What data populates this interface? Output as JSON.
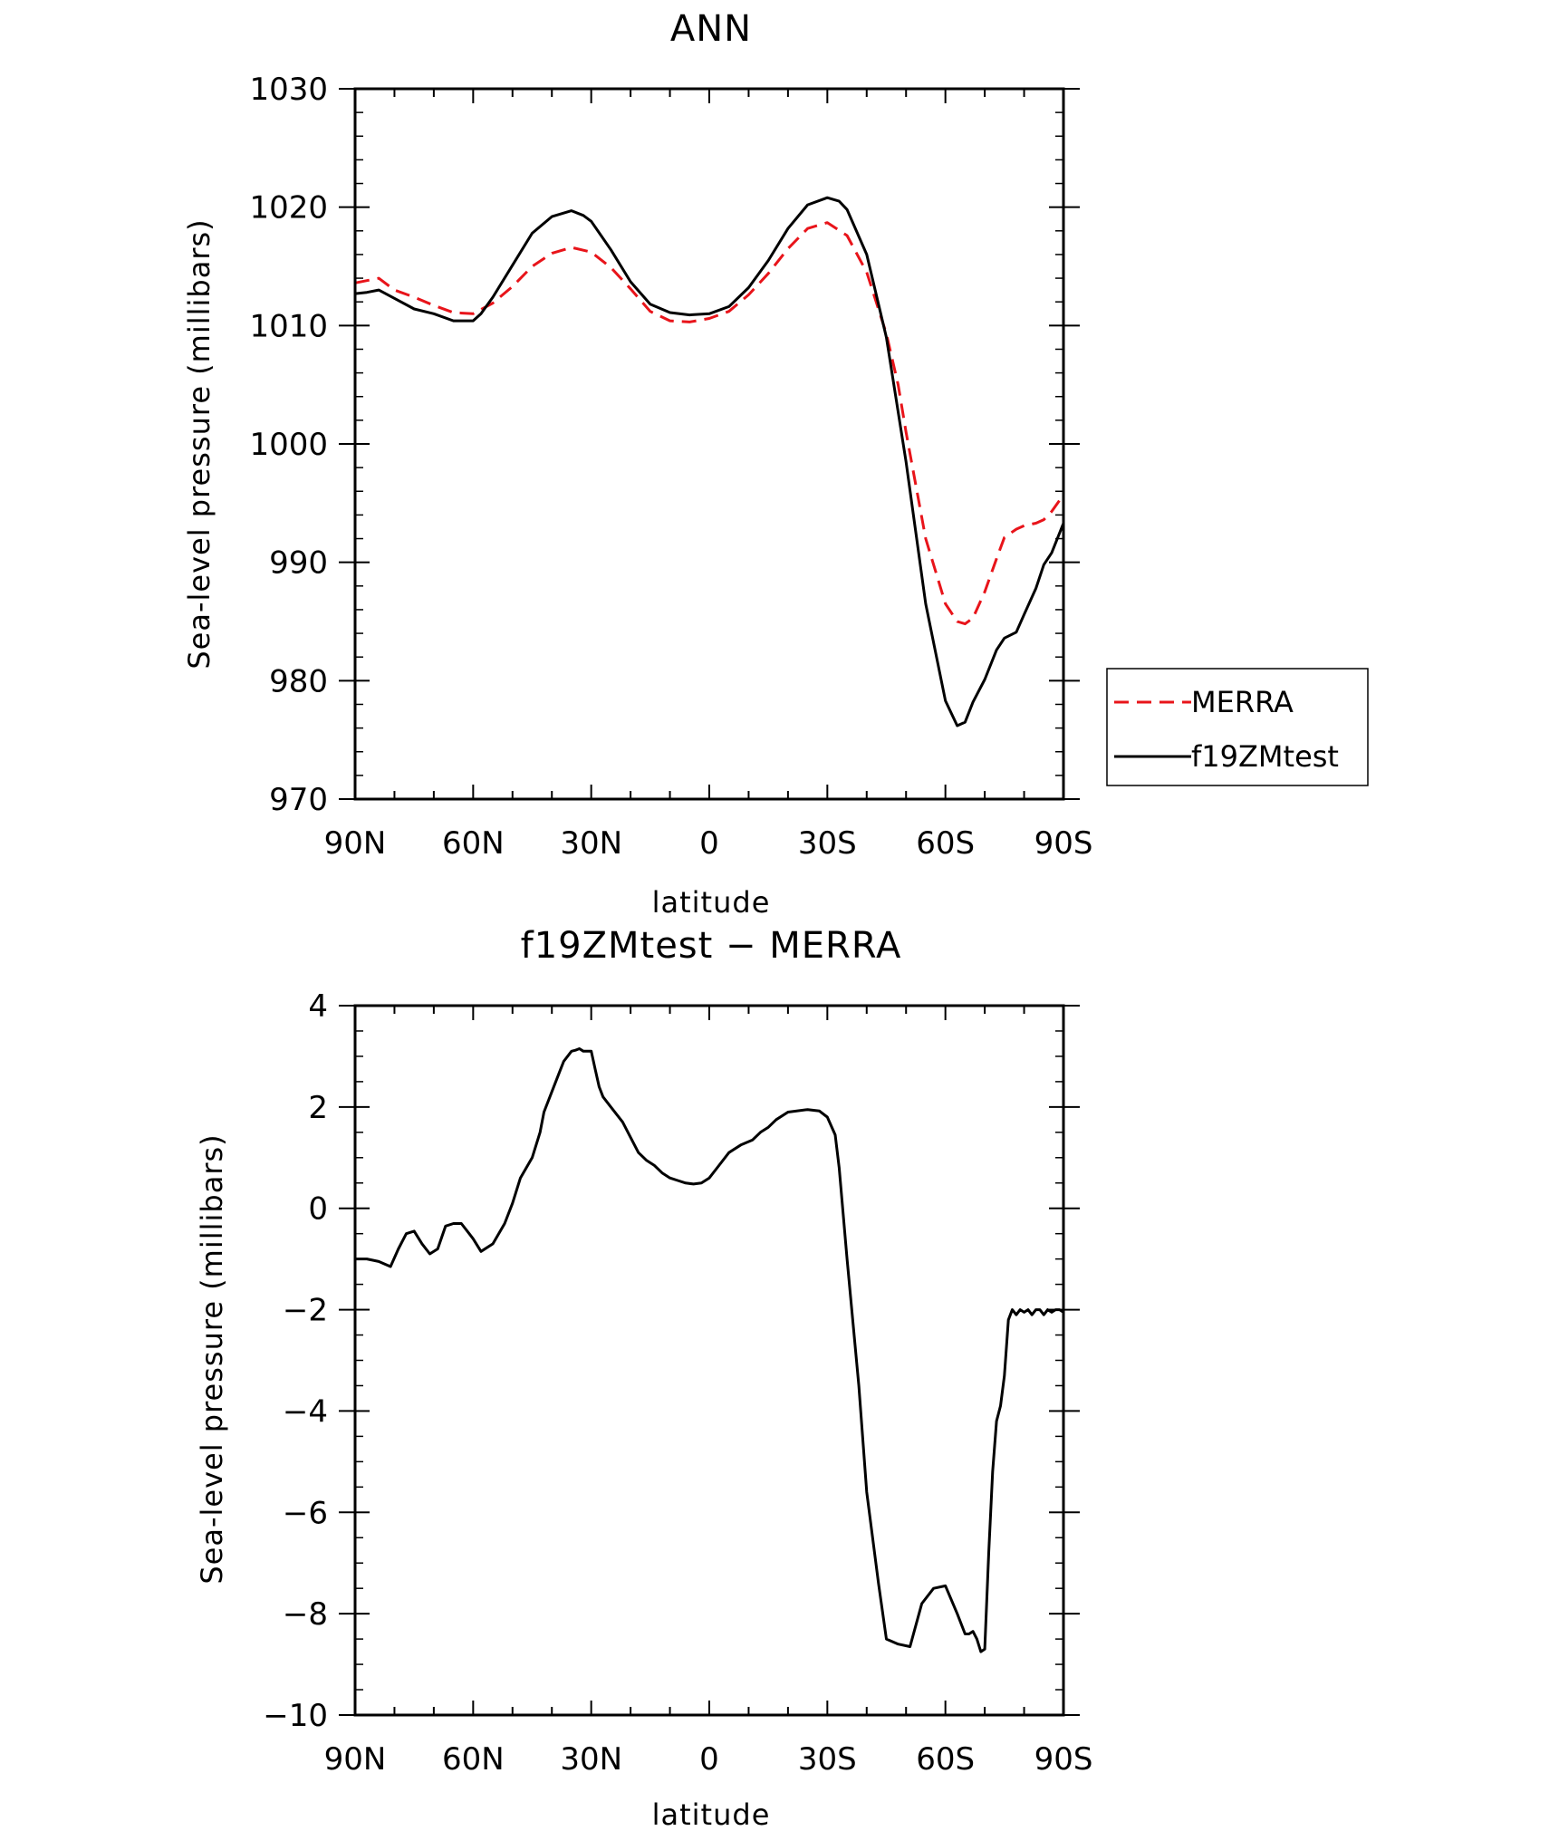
{
  "colors": {
    "merra": "#e8141a",
    "test": "#000000",
    "axes": "#000000"
  },
  "chart_data": [
    {
      "type": "line",
      "title": "ANN",
      "xlabel": "latitude",
      "ylabel": "Sea-level pressure (millibars)",
      "xlim": [
        90,
        -90
      ],
      "ylim": [
        970,
        1030
      ],
      "xticks": [
        90,
        60,
        30,
        0,
        -30,
        -60,
        -90
      ],
      "xtick_labels": [
        "90N",
        "60N",
        "30N",
        "0",
        "30S",
        "60S",
        "90S"
      ],
      "yticks": [
        970,
        980,
        990,
        1000,
        1010,
        1020,
        1030
      ],
      "ytick_labels": [
        "970",
        "980",
        "990",
        "1000",
        "1010",
        "1020",
        "1030"
      ],
      "grid": false,
      "legend_position": "right",
      "series": [
        {
          "name": "MERRA",
          "style": "dashed",
          "color": "#e8141a",
          "x": [
            90,
            87,
            84,
            80,
            75,
            70,
            65,
            60,
            55,
            50,
            45,
            40,
            35,
            30,
            25,
            20,
            15,
            10,
            5,
            0,
            -5,
            -10,
            -15,
            -20,
            -25,
            -30,
            -35,
            -40,
            -45,
            -48,
            -50,
            -55,
            -60,
            -63,
            -65,
            -67,
            -70,
            -73,
            -75,
            -78,
            -80,
            -83,
            -85,
            -87,
            -90
          ],
          "y": [
            1013.6,
            1013.8,
            1014.0,
            1013.0,
            1012.4,
            1011.7,
            1011.1,
            1011.0,
            1011.9,
            1013.3,
            1015.0,
            1016.1,
            1016.6,
            1016.2,
            1014.9,
            1013.1,
            1011.2,
            1010.4,
            1010.3,
            1010.6,
            1011.2,
            1012.6,
            1014.4,
            1016.5,
            1018.2,
            1018.7,
            1017.6,
            1014.5,
            1009.3,
            1005.0,
            1001.0,
            992.0,
            986.5,
            985.0,
            984.8,
            985.3,
            987.5,
            990.3,
            992.1,
            992.8,
            993.1,
            993.3,
            993.6,
            994.3,
            995.7
          ]
        },
        {
          "name": "f19ZMtest",
          "style": "solid",
          "color": "#000000",
          "x": [
            90,
            87,
            84,
            80,
            75,
            70,
            65,
            60,
            58,
            55,
            50,
            45,
            40,
            35,
            32,
            30,
            25,
            20,
            15,
            10,
            5,
            0,
            -5,
            -10,
            -15,
            -20,
            -25,
            -30,
            -33,
            -35,
            -40,
            -45,
            -50,
            -55,
            -60,
            -63,
            -65,
            -67,
            -70,
            -73,
            -75,
            -78,
            -80,
            -83,
            -85,
            -87,
            -90
          ],
          "y": [
            1012.7,
            1012.8,
            1013.0,
            1012.3,
            1011.4,
            1011.0,
            1010.4,
            1010.4,
            1011.0,
            1012.4,
            1015.1,
            1017.8,
            1019.2,
            1019.7,
            1019.3,
            1018.8,
            1016.4,
            1013.7,
            1011.8,
            1011.1,
            1010.9,
            1011.0,
            1011.6,
            1013.2,
            1015.5,
            1018.2,
            1020.2,
            1020.8,
            1020.5,
            1019.8,
            1016.0,
            1009.0,
            998.5,
            986.5,
            978.3,
            976.2,
            976.5,
            978.2,
            980.1,
            982.6,
            983.6,
            984.1,
            985.6,
            987.8,
            989.8,
            990.8,
            993.3
          ]
        }
      ]
    },
    {
      "type": "line",
      "title": "f19ZMtest − MERRA",
      "xlabel": "latitude",
      "ylabel": "Sea-level pressure (millibars)",
      "xlim": [
        90,
        -90
      ],
      "ylim": [
        -10,
        4
      ],
      "xticks": [
        90,
        60,
        30,
        0,
        -30,
        -60,
        -90
      ],
      "xtick_labels": [
        "90N",
        "60N",
        "30N",
        "0",
        "30S",
        "60S",
        "90S"
      ],
      "yticks": [
        -10,
        -8,
        -6,
        -4,
        -2,
        0,
        2,
        4
      ],
      "ytick_labels": [
        "−10",
        "−8",
        "−6",
        "−4",
        "−2",
        "0",
        "2",
        "4"
      ],
      "grid": false,
      "series": [
        {
          "style": "solid",
          "color": "#000000",
          "x": [
            90,
            87,
            84,
            81,
            79,
            77,
            75,
            73,
            71,
            69,
            67,
            65,
            63,
            61,
            60,
            58,
            55,
            52,
            50,
            48,
            45,
            43,
            42,
            40,
            38,
            37,
            35,
            34,
            33,
            32,
            30,
            29,
            28,
            27,
            25,
            22,
            20,
            18,
            16,
            14,
            12,
            10,
            8,
            6,
            4,
            2,
            0,
            -2,
            -5,
            -8,
            -11,
            -13,
            -15,
            -17,
            -20,
            -25,
            -28,
            -30,
            -32,
            -33,
            -35,
            -38,
            -40,
            -43,
            -45,
            -48,
            -51,
            -54,
            -57,
            -60,
            -63,
            -65,
            -66,
            -67,
            -68,
            -69,
            -70,
            -71,
            -72,
            -73,
            -74,
            -75,
            -76,
            -77,
            -78,
            -79,
            -80,
            -81,
            -82,
            -83,
            -84,
            -85,
            -86,
            -87,
            -88,
            -89,
            -90
          ],
          "y": [
            -1.0,
            -1.0,
            -1.05,
            -1.15,
            -0.8,
            -0.5,
            -0.45,
            -0.7,
            -0.9,
            -0.8,
            -0.35,
            -0.3,
            -0.3,
            -0.5,
            -0.6,
            -0.85,
            -0.7,
            -0.3,
            0.1,
            0.6,
            1.0,
            1.5,
            1.9,
            2.3,
            2.7,
            2.9,
            3.1,
            3.12,
            3.15,
            3.1,
            3.1,
            2.75,
            2.4,
            2.2,
            2.0,
            1.7,
            1.4,
            1.1,
            0.95,
            0.85,
            0.7,
            0.6,
            0.55,
            0.5,
            0.48,
            0.5,
            0.6,
            0.8,
            1.1,
            1.25,
            1.35,
            1.5,
            1.6,
            1.75,
            1.9,
            1.95,
            1.92,
            1.8,
            1.45,
            0.8,
            -1.0,
            -3.5,
            -5.6,
            -7.4,
            -8.5,
            -8.6,
            -8.65,
            -7.8,
            -7.5,
            -7.45,
            -8.0,
            -8.4,
            -8.4,
            -8.35,
            -8.5,
            -8.75,
            -8.7,
            -6.8,
            -5.2,
            -4.2,
            -3.9,
            -3.3,
            -2.2,
            -2.0,
            -2.1,
            -2.0,
            -2.05,
            -2.0,
            -2.1,
            -2.0,
            -2.0,
            -2.1,
            -2.0,
            -2.05,
            -2.0,
            -2.0,
            -2.05
          ]
        }
      ]
    }
  ],
  "legend": {
    "items": [
      "MERRA",
      "f19ZMtest"
    ]
  }
}
